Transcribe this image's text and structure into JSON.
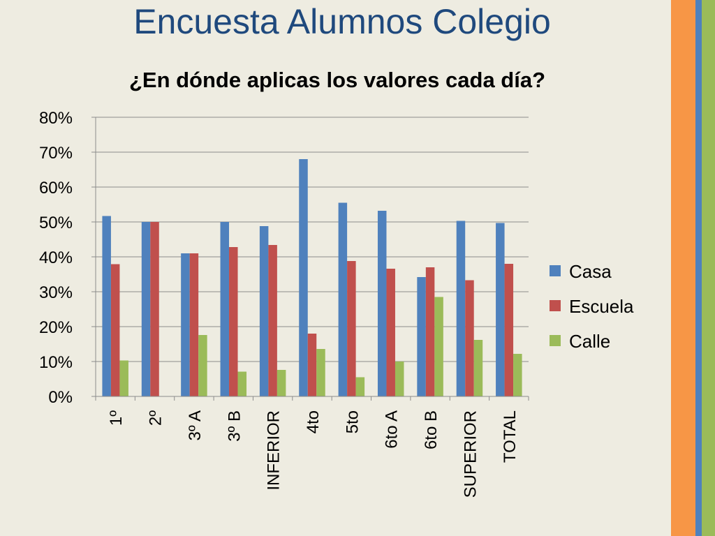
{
  "slide": {
    "title": "Encuesta Alumnos Colegio",
    "stripe_colors": [
      "#F79646",
      "#4F81BD",
      "#9BBB59"
    ],
    "background": "#EEECE1"
  },
  "chart_data": {
    "type": "bar",
    "title": "¿En dónde aplicas los valores cada día?",
    "xlabel": "",
    "ylabel": "",
    "ylim": [
      0,
      0.8
    ],
    "yticks": [
      0,
      0.1,
      0.2,
      0.3,
      0.4,
      0.5,
      0.6,
      0.7,
      0.8
    ],
    "ytick_labels": [
      "0%",
      "10%",
      "20%",
      "30%",
      "40%",
      "50%",
      "60%",
      "70%",
      "80%"
    ],
    "grid": true,
    "legend_position": "right",
    "categories": [
      "1º",
      "2º",
      "3º A",
      "3º B",
      "INFERIOR",
      "4to",
      "5to",
      "6to A",
      "6to B",
      "SUPERIOR",
      "TOTAL"
    ],
    "series": [
      {
        "name": "Casa",
        "color": "#4F81BD",
        "values": [
          0.517,
          0.5,
          0.41,
          0.5,
          0.488,
          0.68,
          0.555,
          0.532,
          0.342,
          0.503,
          0.497
        ]
      },
      {
        "name": "Escuela",
        "color": "#C0504D",
        "values": [
          0.379,
          0.5,
          0.41,
          0.428,
          0.434,
          0.18,
          0.388,
          0.366,
          0.37,
          0.333,
          0.38
        ]
      },
      {
        "name": "Calle",
        "color": "#9BBB59",
        "values": [
          0.103,
          0.0,
          0.176,
          0.071,
          0.076,
          0.136,
          0.055,
          0.1,
          0.285,
          0.162,
          0.122
        ]
      }
    ]
  }
}
